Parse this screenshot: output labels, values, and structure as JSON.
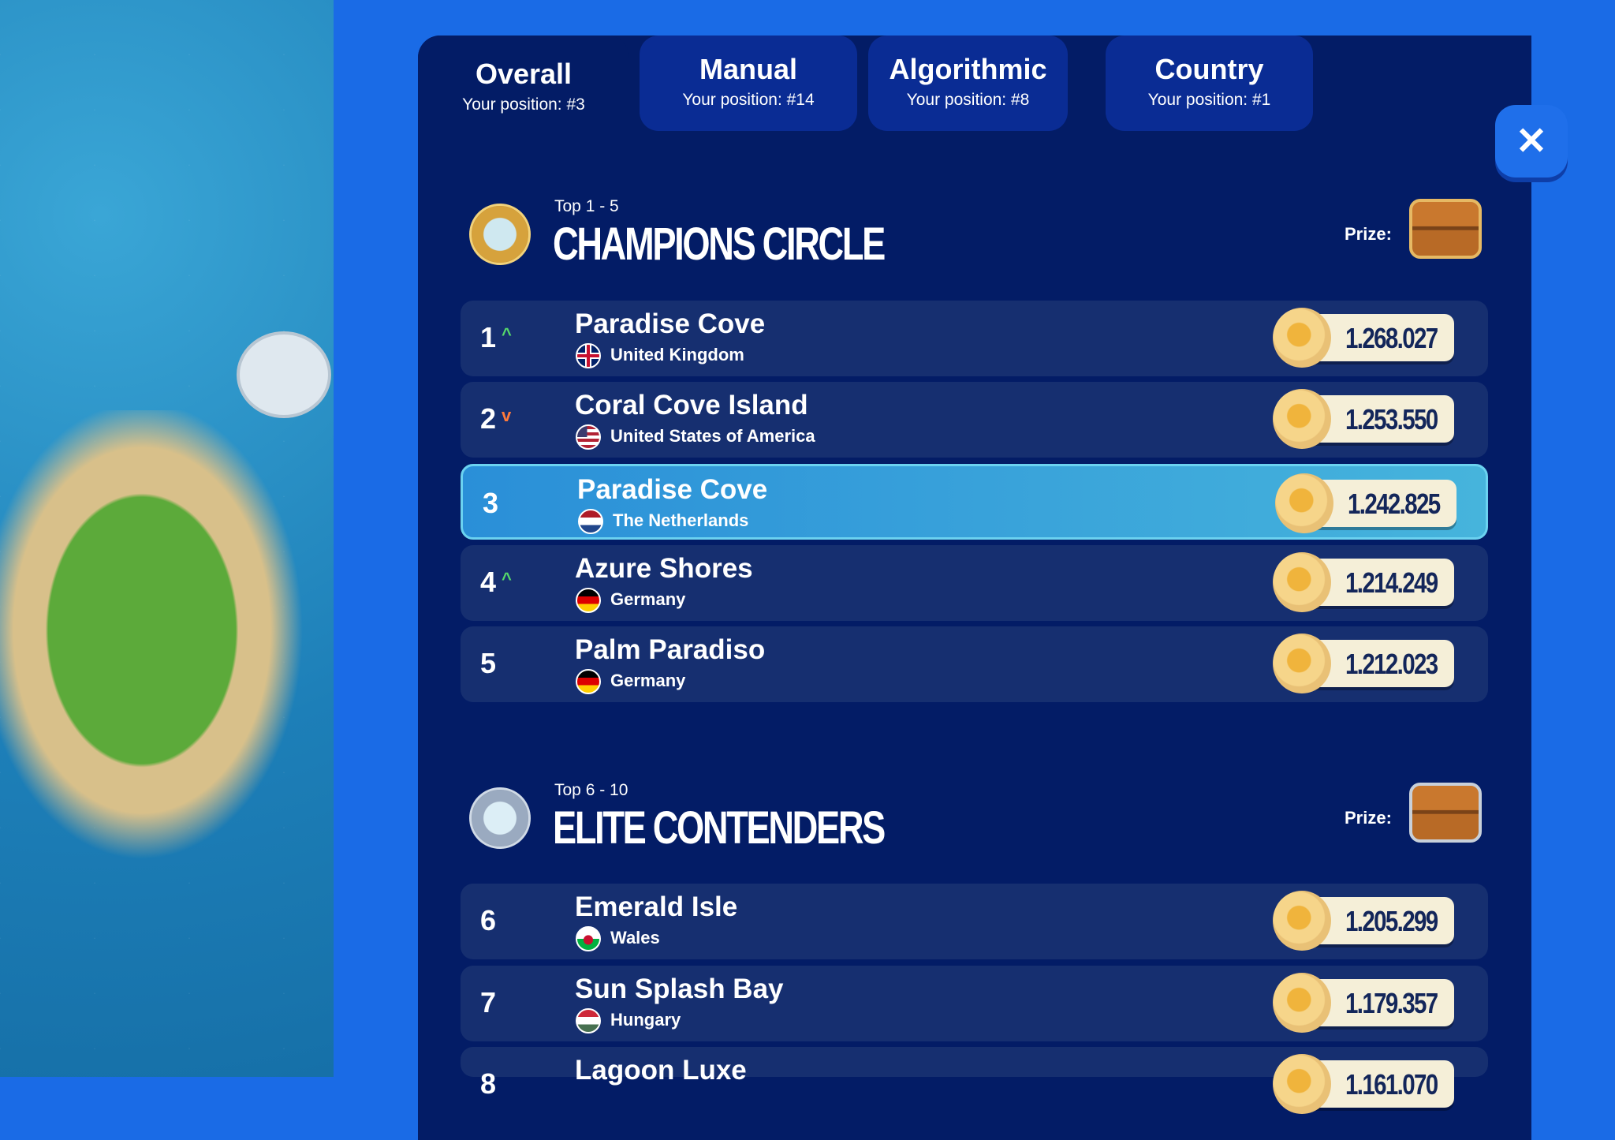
{
  "tabs": [
    {
      "label": "Overall",
      "position": "Your position: #3",
      "active": true
    },
    {
      "label": "Manual",
      "position": "Your position: #14",
      "active": false
    },
    {
      "label": "Algorithmic",
      "position": "Your position: #8",
      "active": false
    },
    {
      "label": "Country",
      "position": "Your position: #1",
      "active": false
    }
  ],
  "close_icon": "close-icon",
  "sections": [
    {
      "range": "Top 1 - 5",
      "title": "CHAMPIONS CIRCLE",
      "prize_label": "Prize:",
      "medal": "gold",
      "chest": "gold"
    },
    {
      "range": "Top 6 - 10",
      "title": "ELITE CONTENDERS",
      "prize_label": "Prize:",
      "medal": "silver",
      "chest": "silver"
    }
  ],
  "rows": [
    {
      "rank": "1",
      "trend": "up",
      "trend_glyph": "^",
      "name": "Paradise Cove",
      "country": "United Kingdom",
      "score": "1.268.027"
    },
    {
      "rank": "2",
      "trend": "down",
      "trend_glyph": "v",
      "name": "Coral Cove Island",
      "country": "United States of America",
      "score": "1.253.550"
    },
    {
      "rank": "3",
      "trend": "",
      "trend_glyph": "",
      "name": "Paradise Cove",
      "country": "The Netherlands",
      "score": "1.242.825",
      "highlighted": true
    },
    {
      "rank": "4",
      "trend": "up",
      "trend_glyph": "^",
      "name": "Azure Shores",
      "country": "Germany",
      "score": "1.214.249"
    },
    {
      "rank": "5",
      "trend": "",
      "trend_glyph": "",
      "name": "Palm Paradiso",
      "country": "Germany",
      "score": "1.212.023"
    },
    {
      "rank": "6",
      "trend": "",
      "trend_glyph": "",
      "name": "Emerald Isle",
      "country": "Wales",
      "score": "1.205.299"
    },
    {
      "rank": "7",
      "trend": "",
      "trend_glyph": "",
      "name": "Sun Splash Bay",
      "country": "Hungary",
      "score": "1.179.357"
    },
    {
      "rank": "8",
      "trend": "",
      "trend_glyph": "",
      "name": "Lagoon Luxe",
      "country": "",
      "score": "1.161.070"
    }
  ],
  "colors": {
    "background": "#1a6be6",
    "panel": "#031c66",
    "row": "#162f70",
    "highlight": "#3aa2da",
    "up": "#55d86a",
    "down": "#ff7a3a"
  }
}
